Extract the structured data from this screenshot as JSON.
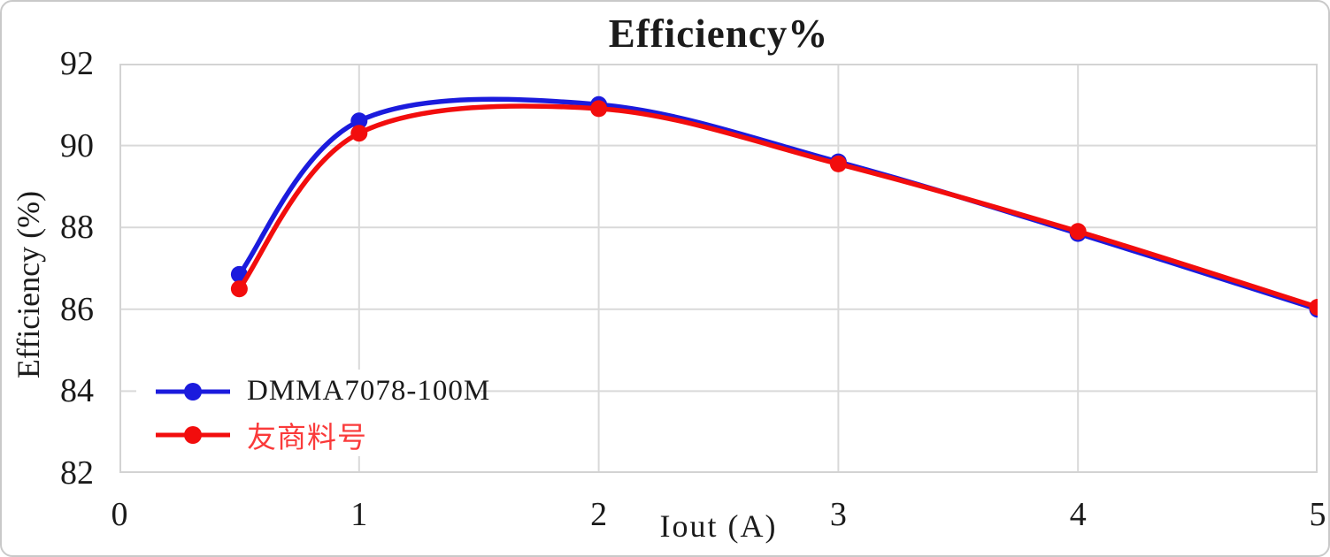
{
  "chart_data": {
    "type": "line",
    "smooth": true,
    "title": "Efficiency%",
    "xlabel": "Iout (A)",
    "ylabel": "Efficiency (%)",
    "xlim": [
      0,
      5
    ],
    "ylim": [
      82,
      92
    ],
    "x_ticks": [
      "0",
      "1",
      "2",
      "3",
      "4",
      "5"
    ],
    "y_ticks": [
      "82",
      "84",
      "86",
      "88",
      "90",
      "92"
    ],
    "grid": true,
    "legend_position": "inside-bottom-left",
    "x": [
      0.5,
      1,
      2,
      3,
      4,
      5
    ],
    "series": [
      {
        "name": "DMMA7078-100M",
        "color": "#1b1bdd",
        "label_color": "#1b1b1b",
        "values": [
          86.85,
          90.6,
          91.0,
          89.6,
          87.85,
          86.0
        ]
      },
      {
        "name": "友商料号",
        "color": "#f20d0d",
        "label_color": "#fa3a3a",
        "values": [
          86.5,
          90.3,
          90.9,
          89.55,
          87.9,
          86.05
        ]
      }
    ],
    "styles": {
      "grid_color": "#d9d9d9",
      "plot_border_color": "#d3d3d3",
      "line_width": 5.5,
      "marker_radius": 9.5
    }
  }
}
